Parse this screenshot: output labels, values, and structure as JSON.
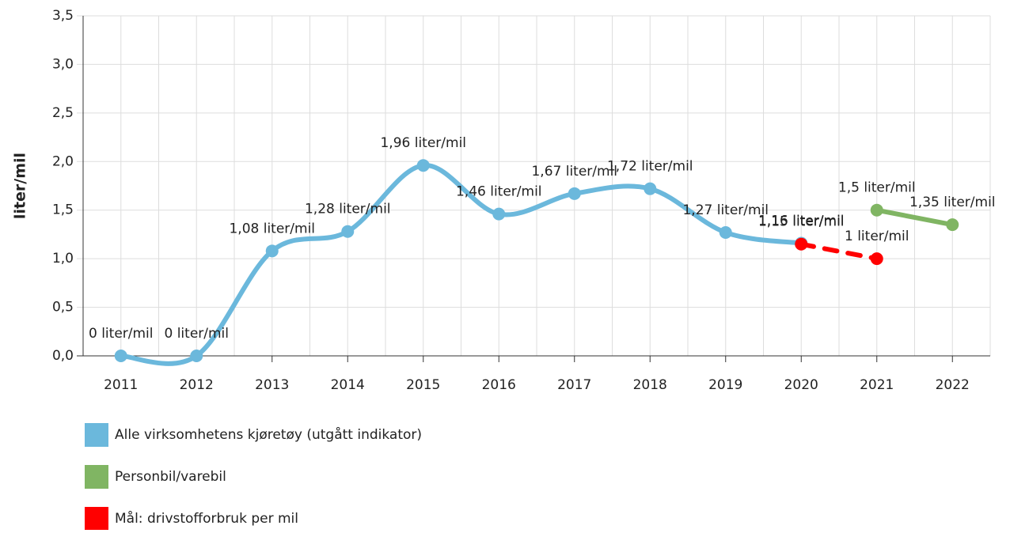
{
  "chart_data": {
    "type": "line",
    "y_label": "liter/mil",
    "categories": [
      "2011",
      "2012",
      "2013",
      "2014",
      "2015",
      "2016",
      "2017",
      "2018",
      "2019",
      "2020",
      "2021",
      "2022"
    ],
    "ylim": [
      0,
      3.5
    ],
    "yticks": [
      {
        "value": 0,
        "label": "0,0"
      },
      {
        "value": 0.5,
        "label": "0,5"
      },
      {
        "value": 1,
        "label": "1,0"
      },
      {
        "value": 1.5,
        "label": "1,5"
      },
      {
        "value": 2,
        "label": "2,0"
      },
      {
        "value": 2.5,
        "label": "2,5"
      },
      {
        "value": 3,
        "label": "3,0"
      },
      {
        "value": 3.5,
        "label": "3,5"
      }
    ],
    "grid": true,
    "series": [
      {
        "name": "Alle virksomhetens kjøretøy (utgått indikator)",
        "color": "#6bb8dc",
        "smooth": true,
        "dashed": false,
        "values": [
          0,
          0,
          1.08,
          1.28,
          1.96,
          1.46,
          1.67,
          1.72,
          1.27,
          1.16,
          null,
          null
        ],
        "value_labels": [
          "0 liter/mil",
          "0 liter/mil",
          "1,08 liter/mil",
          "1,28 liter/mil",
          "1,96 liter/mil",
          "1,46 liter/mil",
          "1,67 liter/mil",
          "1,72 liter/mil",
          "1,27 liter/mil",
          "1,16 liter/mil",
          null,
          null
        ]
      },
      {
        "name": "Personbil/varebil",
        "color": "#80b563",
        "smooth": false,
        "dashed": false,
        "values": [
          null,
          null,
          null,
          null,
          null,
          null,
          null,
          null,
          null,
          null,
          1.5,
          1.35
        ],
        "value_labels": [
          null,
          null,
          null,
          null,
          null,
          null,
          null,
          null,
          null,
          null,
          "1,5 liter/mil",
          "1,35 liter/mil"
        ]
      },
      {
        "name": "Mål: drivstofforbruk per mil",
        "color": "#ff0000",
        "smooth": false,
        "dashed": true,
        "values": [
          null,
          null,
          null,
          null,
          null,
          null,
          null,
          null,
          null,
          1.15,
          1,
          null
        ],
        "value_labels": [
          null,
          null,
          null,
          null,
          null,
          null,
          null,
          null,
          null,
          "1,15 liter/mil",
          "1 liter/mil",
          null
        ]
      }
    ]
  }
}
